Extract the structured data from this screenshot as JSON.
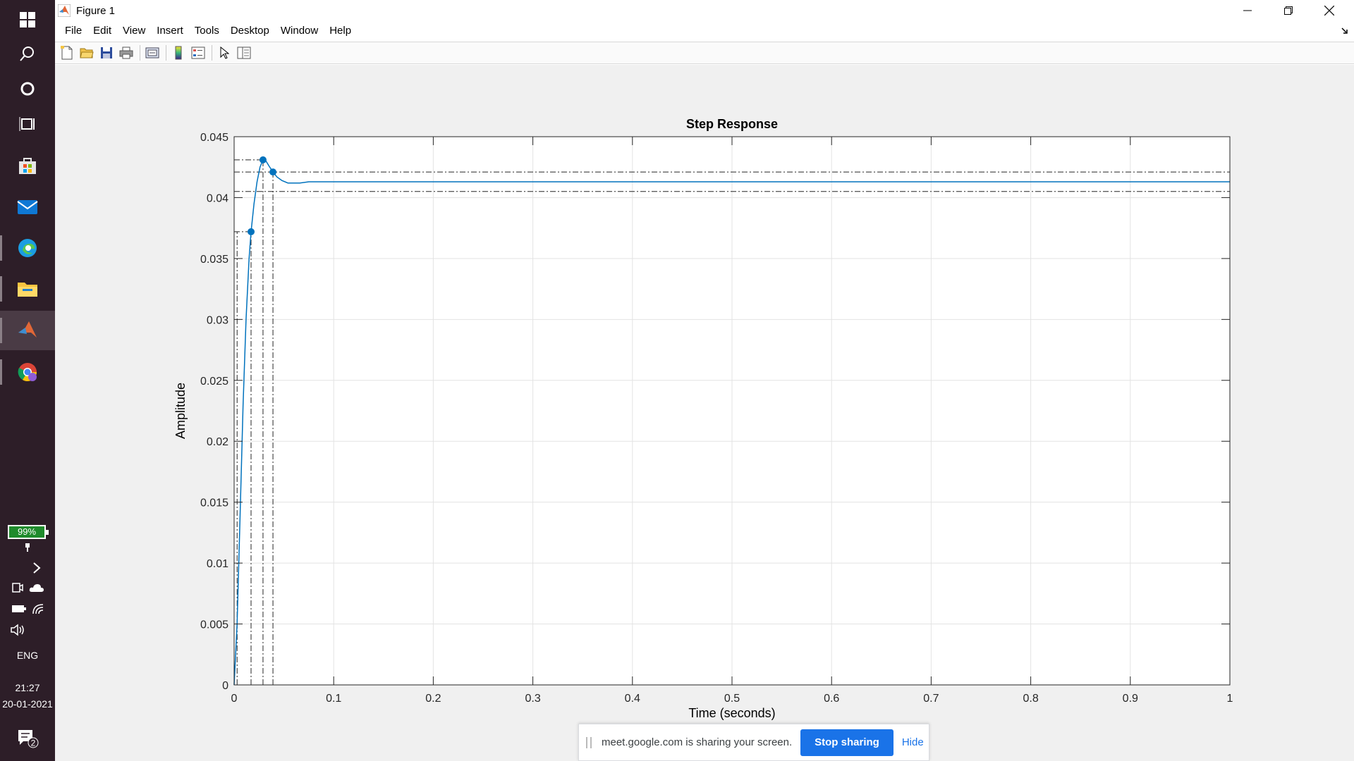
{
  "taskbar": {
    "battery_percent": "99%",
    "language": "ENG",
    "time": "21:27",
    "date": "20-01-2021",
    "notification_count": "2"
  },
  "window": {
    "title": "Figure 1",
    "menu": [
      "File",
      "Edit",
      "View",
      "Insert",
      "Tools",
      "Desktop",
      "Window",
      "Help"
    ]
  },
  "chart_data": {
    "type": "line",
    "title": "Step Response",
    "xlabel": "Time (seconds)",
    "ylabel": "Amplitude",
    "xlim": [
      0,
      1
    ],
    "ylim": [
      0,
      0.045
    ],
    "xticks": [
      "0",
      "0.1",
      "0.2",
      "0.3",
      "0.4",
      "0.5",
      "0.6",
      "0.7",
      "0.8",
      "0.9",
      "1"
    ],
    "yticks": [
      "0",
      "0.005",
      "0.01",
      "0.015",
      "0.02",
      "0.025",
      "0.03",
      "0.035",
      "0.04",
      "0.045"
    ],
    "grid": true,
    "series_color": "#0072bd",
    "series": [
      {
        "x": [
          0,
          0.003,
          0.006,
          0.009,
          0.012,
          0.015,
          0.017,
          0.02,
          0.023,
          0.026,
          0.029,
          0.032,
          0.035,
          0.039,
          0.043,
          0.048,
          0.054,
          0.06,
          0.066,
          0.075,
          0.09,
          0.11,
          0.15,
          0.3,
          0.5,
          0.7,
          1.0
        ],
        "y": [
          0,
          0.005,
          0.014,
          0.023,
          0.03,
          0.035,
          0.0372,
          0.0395,
          0.0413,
          0.0425,
          0.0431,
          0.043,
          0.0426,
          0.0421,
          0.0417,
          0.0414,
          0.0412,
          0.0412,
          0.0412,
          0.0413,
          0.0413,
          0.0413,
          0.0413,
          0.0413,
          0.0413,
          0.0413,
          0.0413
        ]
      }
    ],
    "markers": [
      {
        "x": 0.017,
        "y": 0.0372
      },
      {
        "x": 0.029,
        "y": 0.0431
      },
      {
        "x": 0.039,
        "y": 0.0421
      }
    ],
    "reference_lines": {
      "horizontal": [
        0.0431,
        0.0421,
        0.0405,
        0.0372
      ],
      "vertical": [
        0.003,
        0.017,
        0.029,
        0.039
      ]
    }
  },
  "share_bar": {
    "message": "meet.google.com is sharing your screen.",
    "stop_label": "Stop sharing",
    "hide_label": "Hide"
  }
}
